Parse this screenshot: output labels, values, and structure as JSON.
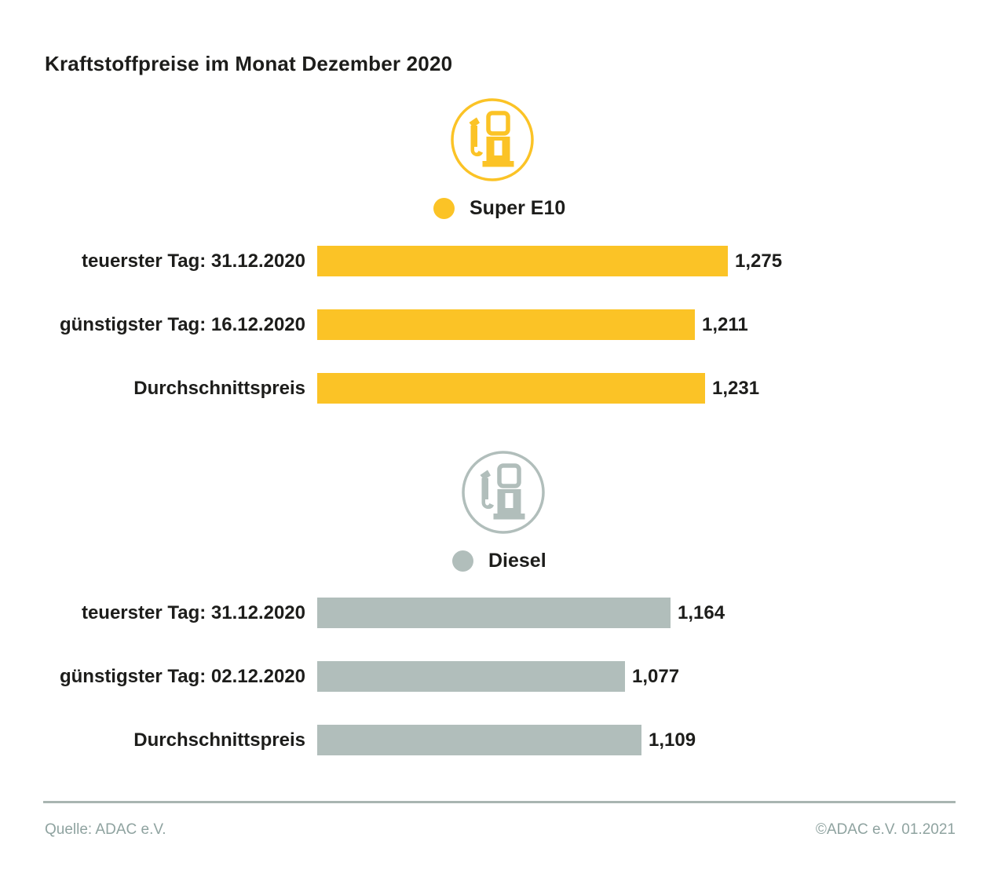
{
  "title": "Kraftstoffpreise im Monat Dezember 2020",
  "colors": {
    "background": "#FFFFFF",
    "text": "#1D1D1B",
    "super_e10": "#FBC326",
    "diesel": "#B1BEBB",
    "divider": "#A9B5B1",
    "footer_text": "#8FA3A0"
  },
  "chart_data": [
    {
      "type": "bar",
      "orientation": "horizontal",
      "group": "Super E10",
      "icon": "fuel-pump-icon",
      "color": "#FBC326",
      "categories": [
        "teuerster Tag: 31.12.2020",
        "günstigster Tag: 16.12.2020",
        "Durchschnittspreis"
      ],
      "values": [
        1.275,
        1.211,
        1.231
      ],
      "value_labels": [
        "1,275",
        "1,211",
        "1,231"
      ],
      "xlim": [
        0.4845,
        1.3
      ],
      "grid": false,
      "legend_position": "above-bars"
    },
    {
      "type": "bar",
      "orientation": "horizontal",
      "group": "Diesel",
      "icon": "fuel-pump-icon",
      "color": "#B1BEBB",
      "categories": [
        "teuerster Tag: 31.12.2020",
        "günstigster Tag: 02.12.2020",
        "Durchschnittspreis"
      ],
      "values": [
        1.164,
        1.077,
        1.109
      ],
      "value_labels": [
        "1,164",
        "1,077",
        "1,109"
      ],
      "xlim": [
        0.4845,
        1.3
      ],
      "grid": false,
      "legend_position": "above-bars"
    }
  ],
  "footer": {
    "source": "Quelle: ADAC e.V.",
    "copyright": "©ADAC e.V. 01.2021"
  }
}
